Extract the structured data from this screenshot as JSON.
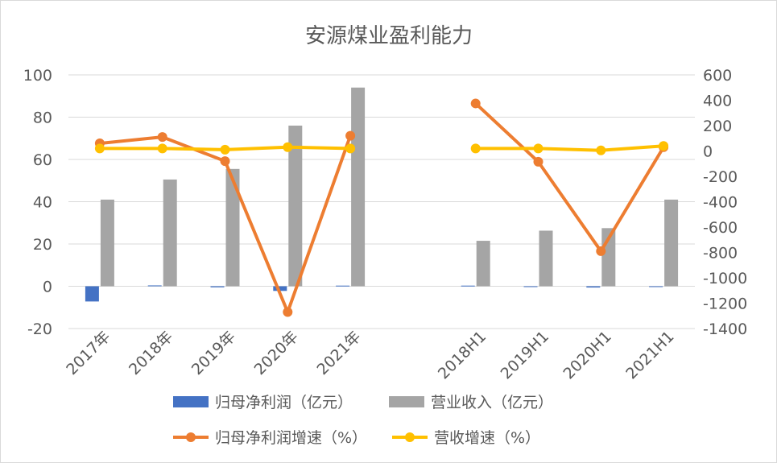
{
  "chart_data": {
    "type": "bar",
    "title": "安源煤业盈利能力",
    "categories": [
      "2017年",
      "2018年",
      "2019年",
      "2020年",
      "2021年",
      "",
      "2018H1",
      "2019H1",
      "2020H1",
      "2021H1"
    ],
    "y_left": {
      "ylim": [
        -20,
        100
      ],
      "ticks": [
        "-20",
        "0",
        "20",
        "40",
        "60",
        "80",
        "100"
      ]
    },
    "y_right": {
      "ylim": [
        -1400,
        600
      ],
      "ticks": [
        "-1400",
        "-1200",
        "-1000",
        "-800",
        "-600",
        "-400",
        "-200",
        "0",
        "200",
        "400",
        "600"
      ]
    },
    "grid": true,
    "legend_position": "bottom",
    "series": [
      {
        "name": "归母净利润（亿元）",
        "type": "bar",
        "axis": "left",
        "color": "#4472c4",
        "values": [
          -7.2,
          0.4,
          -0.5,
          -2.2,
          0.3,
          null,
          0.3,
          -0.3,
          -0.6,
          -0.3
        ]
      },
      {
        "name": "营业收入（亿元）",
        "type": "bar",
        "axis": "left",
        "color": "#a5a5a5",
        "values": [
          41,
          50.5,
          55.5,
          76,
          94,
          null,
          21.5,
          26.3,
          27.5,
          41
        ]
      },
      {
        "name": "归母净利润增速（%）",
        "type": "line",
        "axis": "right",
        "color": "#ed7d31",
        "values": [
          60,
          110,
          -80,
          -1270,
          120,
          null,
          375,
          -85,
          -790,
          30
        ]
      },
      {
        "name": "营收增速（%）",
        "type": "line",
        "axis": "right",
        "color": "#ffc000",
        "values": [
          20,
          20,
          10,
          30,
          20,
          null,
          20,
          20,
          5,
          40
        ]
      }
    ]
  }
}
